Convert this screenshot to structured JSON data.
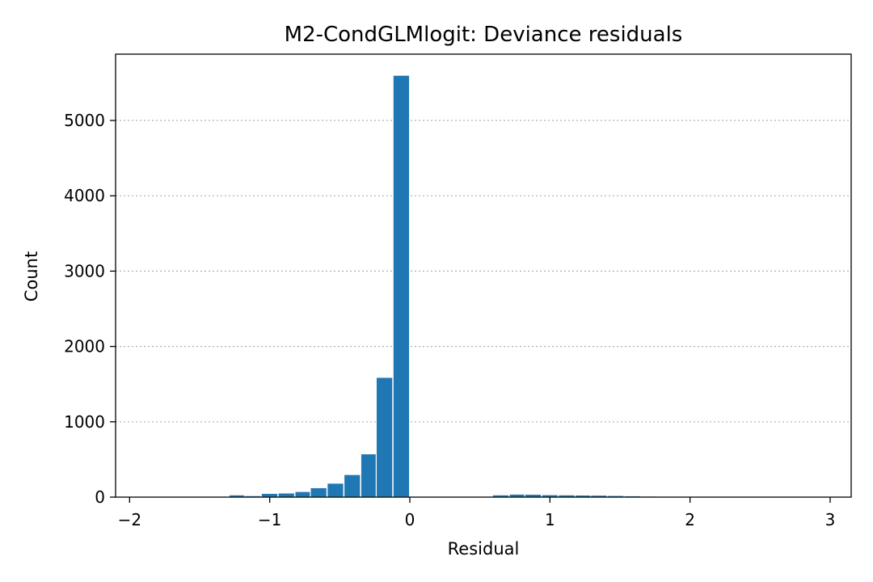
{
  "chart_data": {
    "type": "bar",
    "title": "M2-CondGLMlogit: Deviance residuals",
    "xlabel": "Residual",
    "ylabel": "Count",
    "xlim": [
      -2.1,
      3.15
    ],
    "ylim": [
      0,
      5880
    ],
    "xticks": [
      -2,
      -1,
      0,
      1,
      2,
      3
    ],
    "xtick_labels": [
      "−2",
      "−1",
      "0",
      "1",
      "2",
      "3"
    ],
    "yticks": [
      0,
      1000,
      2000,
      3000,
      4000,
      5000
    ],
    "ytick_labels": [
      "0",
      "1000",
      "2000",
      "3000",
      "4000",
      "5000"
    ],
    "grid": "y-dotted",
    "color": "#1f77b4",
    "bin_width": 0.118,
    "bins": [
      {
        "x0": -2.0,
        "count": 0
      },
      {
        "x0": -1.88,
        "count": 0
      },
      {
        "x0": -1.76,
        "count": 0
      },
      {
        "x0": -1.65,
        "count": 0
      },
      {
        "x0": -1.53,
        "count": 0
      },
      {
        "x0": -1.41,
        "count": 0
      },
      {
        "x0": -1.29,
        "count": 30
      },
      {
        "x0": -1.18,
        "count": 20
      },
      {
        "x0": -1.06,
        "count": 50
      },
      {
        "x0": -0.94,
        "count": 55
      },
      {
        "x0": -0.82,
        "count": 75
      },
      {
        "x0": -0.71,
        "count": 125
      },
      {
        "x0": -0.59,
        "count": 185
      },
      {
        "x0": -0.47,
        "count": 300
      },
      {
        "x0": -0.35,
        "count": 575
      },
      {
        "x0": -0.24,
        "count": 1590
      },
      {
        "x0": -0.12,
        "count": 5600
      },
      {
        "x0": 0.0,
        "count": 0
      },
      {
        "x0": 0.12,
        "count": 0
      },
      {
        "x0": 0.24,
        "count": 0
      },
      {
        "x0": 0.35,
        "count": 0
      },
      {
        "x0": 0.47,
        "count": 0
      },
      {
        "x0": 0.59,
        "count": 30
      },
      {
        "x0": 0.71,
        "count": 40
      },
      {
        "x0": 0.82,
        "count": 38
      },
      {
        "x0": 0.94,
        "count": 32
      },
      {
        "x0": 1.06,
        "count": 30
      },
      {
        "x0": 1.18,
        "count": 28
      },
      {
        "x0": 1.29,
        "count": 26
      },
      {
        "x0": 1.41,
        "count": 22
      },
      {
        "x0": 1.53,
        "count": 18
      },
      {
        "x0": 1.65,
        "count": 14
      },
      {
        "x0": 1.76,
        "count": 10
      },
      {
        "x0": 1.88,
        "count": 5
      },
      {
        "x0": 2.0,
        "count": 3
      },
      {
        "x0": 2.12,
        "count": 2
      },
      {
        "x0": 2.24,
        "count": 1
      },
      {
        "x0": 2.35,
        "count": 1
      },
      {
        "x0": 2.47,
        "count": 1
      },
      {
        "x0": 2.59,
        "count": 1
      },
      {
        "x0": 2.71,
        "count": 0
      },
      {
        "x0": 2.82,
        "count": 0
      }
    ]
  }
}
